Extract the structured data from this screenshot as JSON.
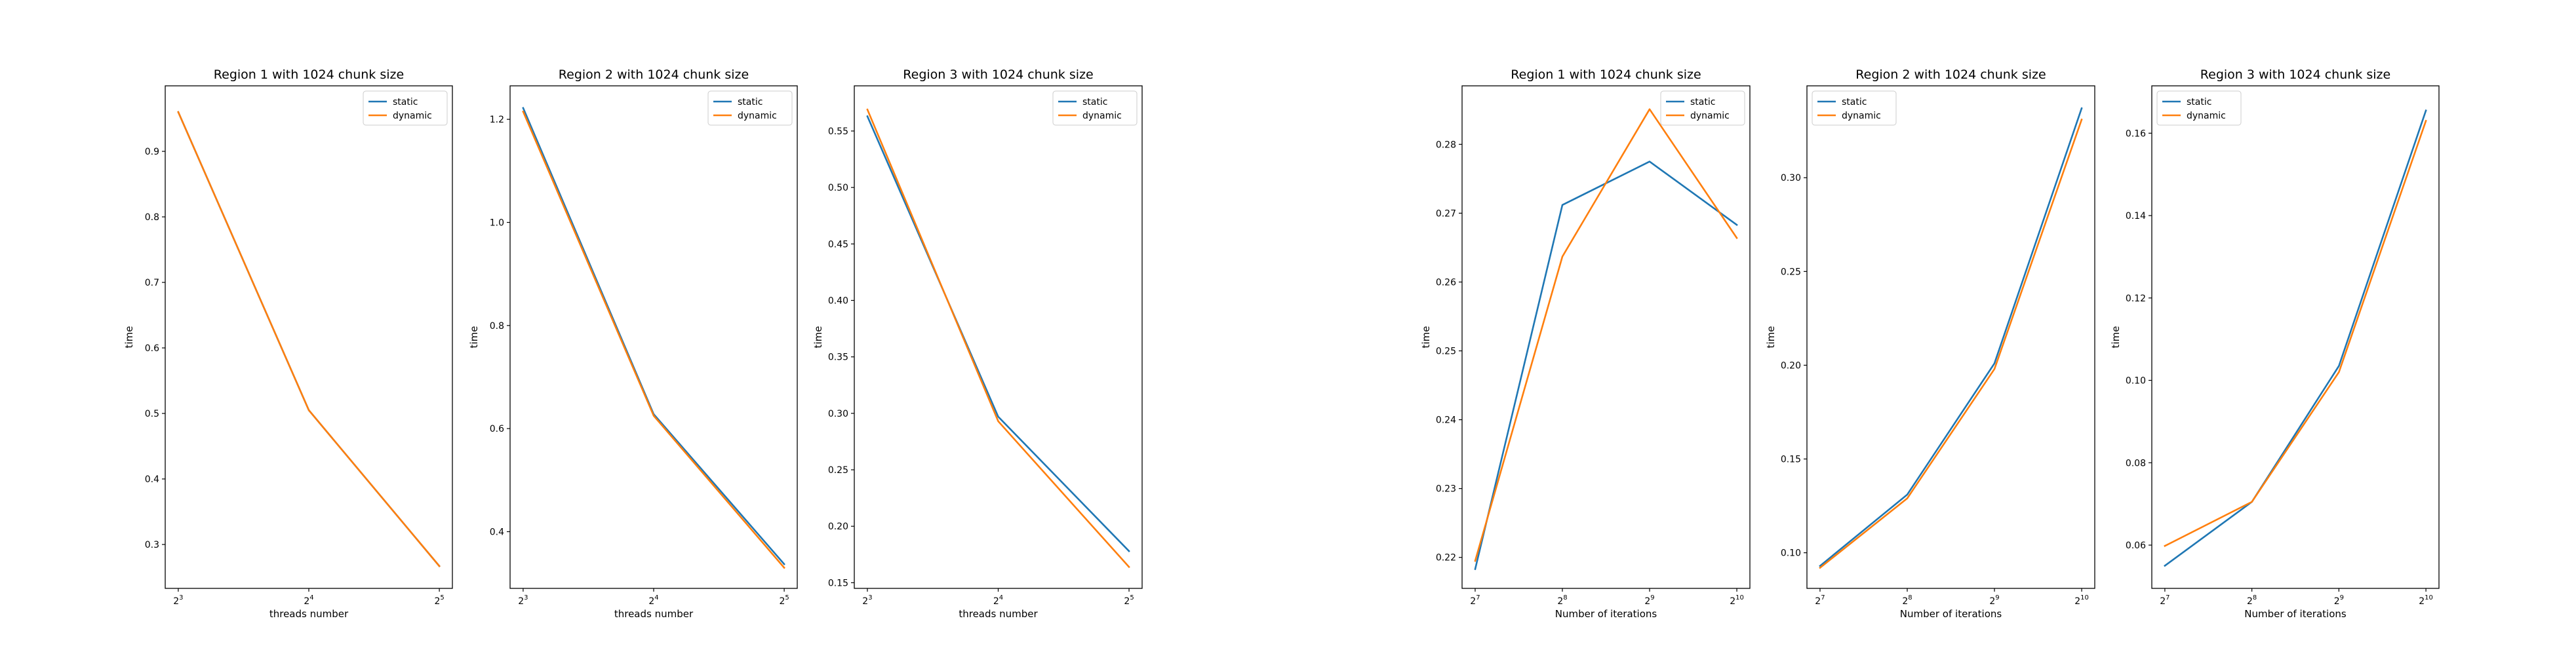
{
  "colors": {
    "static": "#1f77b4",
    "dynamic": "#ff7f0e"
  },
  "chart_data": [
    {
      "type": "line",
      "title": "Region 1 with 1024 chunk size",
      "xlabel": "threads number",
      "ylabel": "time",
      "xscale": "log2",
      "x": [
        8,
        16,
        32
      ],
      "xticks": [
        {
          "base": "2",
          "exp": "3"
        },
        {
          "base": "2",
          "exp": "4"
        },
        {
          "base": "2",
          "exp": "5"
        }
      ],
      "ylim": [
        0.233,
        1.0
      ],
      "yticks": [
        "0.3",
        "0.4",
        "0.5",
        "0.6",
        "0.7",
        "0.8",
        "0.9"
      ],
      "legend": "top-right",
      "grid": false,
      "series": [
        {
          "name": "static",
          "values": [
            0.96,
            0.505,
            0.267
          ]
        },
        {
          "name": "dynamic",
          "values": [
            0.96,
            0.505,
            0.267
          ]
        }
      ]
    },
    {
      "type": "line",
      "title": "Region 2 with 1024 chunk size",
      "xlabel": "threads number",
      "ylabel": "time",
      "xscale": "log2",
      "x": [
        8,
        16,
        32
      ],
      "xticks": [
        {
          "base": "2",
          "exp": "3"
        },
        {
          "base": "2",
          "exp": "4"
        },
        {
          "base": "2",
          "exp": "5"
        }
      ],
      "ylim": [
        0.29,
        1.265
      ],
      "yticks": [
        "0.4",
        "0.6",
        "0.8",
        "1.0",
        "1.2"
      ],
      "legend": "top-right",
      "grid": false,
      "series": [
        {
          "name": "static",
          "values": [
            1.222,
            0.628,
            0.337
          ]
        },
        {
          "name": "dynamic",
          "values": [
            1.215,
            0.625,
            0.33
          ]
        }
      ]
    },
    {
      "type": "line",
      "title": "Region 3 with 1024 chunk size",
      "xlabel": "threads number",
      "ylabel": "time",
      "xscale": "log2",
      "x": [
        8,
        16,
        32
      ],
      "xticks": [
        {
          "base": "2",
          "exp": "3"
        },
        {
          "base": "2",
          "exp": "4"
        },
        {
          "base": "2",
          "exp": "5"
        }
      ],
      "ylim": [
        0.145,
        0.59
      ],
      "yticks": [
        "0.15",
        "0.20",
        "0.25",
        "0.30",
        "0.35",
        "0.40",
        "0.45",
        "0.50",
        "0.55"
      ],
      "legend": "top-right",
      "grid": false,
      "series": [
        {
          "name": "static",
          "values": [
            0.563,
            0.297,
            0.178
          ]
        },
        {
          "name": "dynamic",
          "values": [
            0.569,
            0.293,
            0.164
          ]
        }
      ]
    },
    {
      "type": "line",
      "title": "Region 1 with 1024 chunk size",
      "xlabel": "Number of iterations",
      "ylabel": "time",
      "xscale": "log2",
      "x": [
        128,
        256,
        512,
        1024
      ],
      "xticks": [
        {
          "base": "2",
          "exp": "7"
        },
        {
          "base": "2",
          "exp": "8"
        },
        {
          "base": "2",
          "exp": "9"
        },
        {
          "base": "2",
          "exp": "10"
        }
      ],
      "ylim": [
        0.2155,
        0.2885
      ],
      "yticks": [
        "0.22",
        "0.23",
        "0.24",
        "0.25",
        "0.26",
        "0.27",
        "0.28"
      ],
      "legend": "top-right",
      "grid": false,
      "series": [
        {
          "name": "static",
          "values": [
            0.2183,
            0.2712,
            0.2775,
            0.2683
          ]
        },
        {
          "name": "dynamic",
          "values": [
            0.2195,
            0.2637,
            0.2851,
            0.2664
          ]
        }
      ]
    },
    {
      "type": "line",
      "title": "Region 2 with 1024 chunk size",
      "xlabel": "Number of iterations",
      "ylabel": "time",
      "xscale": "log2",
      "x": [
        128,
        256,
        512,
        1024
      ],
      "xticks": [
        {
          "base": "2",
          "exp": "7"
        },
        {
          "base": "2",
          "exp": "8"
        },
        {
          "base": "2",
          "exp": "9"
        },
        {
          "base": "2",
          "exp": "10"
        }
      ],
      "ylim": [
        0.081,
        0.349
      ],
      "yticks": [
        "0.10",
        "0.15",
        "0.20",
        "0.25",
        "0.30"
      ],
      "legend": "top-left",
      "grid": false,
      "series": [
        {
          "name": "static",
          "values": [
            0.093,
            0.131,
            0.201,
            0.337
          ]
        },
        {
          "name": "dynamic",
          "values": [
            0.092,
            0.129,
            0.198,
            0.331
          ]
        }
      ]
    },
    {
      "type": "line",
      "title": "Region 3 with 1024 chunk size",
      "xlabel": "Number of iterations",
      "ylabel": "time",
      "xscale": "log2",
      "x": [
        128,
        256,
        512,
        1024
      ],
      "xticks": [
        {
          "base": "2",
          "exp": "7"
        },
        {
          "base": "2",
          "exp": "8"
        },
        {
          "base": "2",
          "exp": "9"
        },
        {
          "base": "2",
          "exp": "10"
        }
      ],
      "ylim": [
        0.0495,
        0.1715
      ],
      "yticks": [
        "0.06",
        "0.08",
        "0.10",
        "0.12",
        "0.14",
        "0.16"
      ],
      "legend": "top-left",
      "grid": false,
      "series": [
        {
          "name": "static",
          "values": [
            0.055,
            0.0705,
            0.1035,
            0.1655
          ]
        },
        {
          "name": "dynamic",
          "values": [
            0.0598,
            0.0705,
            0.102,
            0.163
          ]
        }
      ]
    }
  ]
}
